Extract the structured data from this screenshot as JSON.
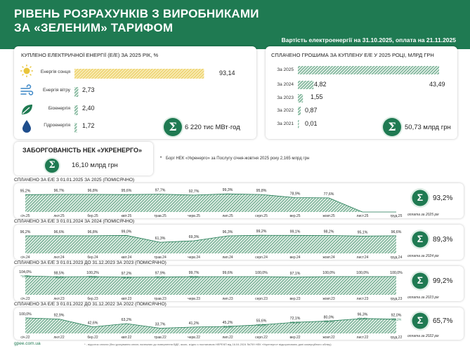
{
  "header": {
    "title_line1": "РІВЕНЬ РОЗРАХУНКІВ З ВИРОБНИКАМИ",
    "title_line2": "ЗА «ЗЕЛЕНИМ» ТАРИФОМ",
    "subtitle": "Вартість електроенергії на 31.10.2025, оплата на 21.11.2025"
  },
  "bought": {
    "title": "КУПЛЕНО ЕЛЕКТРИЧНОЇ ЕНЕРГІЇ (Е/Е) ЗА 2025 РІК, %",
    "total": "6 220 тис МВт·год"
  },
  "paid": {
    "title": "СПЛАЧЕНО ГРОШИМА ЗА КУПЛЕНУ Е/Е У 2025 РОЦІ, МЛРД ГРН",
    "total": "50,73 млрд грн"
  },
  "debt": {
    "title": "ЗАБОРГОВАНІСТЬ НЕК «УКРЕНЕРГО»",
    "value": "16,10 млрд грн",
    "note": "Борг НЕК «Укренерго» за Послугу січня-жовтня 2025 року 2,165 млрд грн"
  },
  "chart_data": [
    {
      "type": "bar",
      "title": "КУПЛЕНО ЕЛЕКТРИЧНОЇ ЕНЕРГІЇ (Е/Е) ЗА 2025 РІК, %",
      "categories": [
        "Енергія сонця",
        "Енергія вітру",
        "Біоенергія",
        "Гідроенергія"
      ],
      "values": [
        93.14,
        2.73,
        2.4,
        1.72
      ],
      "labels": [
        "93,14",
        "2,73",
        "2,40",
        "1,72"
      ],
      "xlim": [
        0,
        100
      ]
    },
    {
      "type": "bar",
      "title": "СПЛАЧЕНО ГРОШИМА ЗА КУПЛЕНУ Е/Е У 2025 РОЦІ, МЛРД ГРН",
      "categories": [
        "За 2025",
        "За 2024",
        "За 2023",
        "За 2022",
        "За 2021"
      ],
      "values": [
        43.49,
        4.82,
        1.55,
        0.87,
        0.01
      ],
      "labels": [
        "43,49",
        "4,82",
        "1,55",
        "0,87",
        "0,01"
      ],
      "xlim": [
        0,
        45
      ]
    },
    {
      "type": "area",
      "title": "СПЛАЧЕНО ЗА Е/Е З 01.01.2025 ЗА 2025 (ПОМІСЯЧНО)",
      "x": [
        "січ.25",
        "лют.25",
        "бер.25",
        "квіт.25",
        "трав.25",
        "черв.25",
        "лип.25",
        "серп.25",
        "вер.25",
        "жовт.25",
        "лист.25",
        "груд.25"
      ],
      "values": [
        95.2,
        96.7,
        96.8,
        95.6,
        97.7,
        92.7,
        99.3,
        95.8,
        78.9,
        77.6,
        0,
        0
      ],
      "labels": [
        "95,2%",
        "96,7%",
        "96,8%",
        "95,6%",
        "97,7%",
        "92,7%",
        "99,3%",
        "95,8%",
        "78,9%",
        "77,6%",
        "",
        ""
      ],
      "sublabels": [
        "",
        "",
        "",
        "",
        "",
        "",
        "",
        "",
        "",
        "",
        "",
        ""
      ],
      "total": "93,2%",
      "note": "оплата за 2025 рік",
      "ylim": [
        0,
        100
      ]
    },
    {
      "type": "area",
      "title": "СПЛАЧЕНО ЗА Е/Е З 01.01.2024 ЗА 2024 (ПОМІСЯЧНО)",
      "x": [
        "січ.24",
        "лют.24",
        "бер.24",
        "квіт.24",
        "трав.24",
        "черв.24",
        "лип.24",
        "серп.24",
        "вер.24",
        "жовт.24",
        "лист.24",
        "груд.24"
      ],
      "values": [
        96.2,
        96.6,
        96.8,
        99.0,
        61.3,
        69.3,
        96.3,
        99.2,
        99.1,
        98.2,
        95.1,
        96.6
      ],
      "labels": [
        "96,2%",
        "96,6%",
        "96,8%",
        "99,0%",
        "61,3%",
        "69,3%",
        "96,3%",
        "99,2%",
        "99,1%",
        "98,2%",
        "95,1%",
        "96,6%"
      ],
      "sublabels": [
        "",
        "",
        "",
        "",
        "",
        "",
        "",
        "",
        "",
        "",
        "",
        ""
      ],
      "total": "89,3%",
      "note": "оплата за 2024 рік",
      "ylim": [
        0,
        100
      ]
    },
    {
      "type": "area",
      "title": "СПЛАЧЕНО ЗА Е/Е З 01.01.2023 ДО 31.12.2023 ЗА 2023 (ПОМІСЯЧНО)",
      "x": [
        "січ.23",
        "лют.23",
        "бер.23",
        "квіт.23",
        "трав.23",
        "черв.23",
        "лип.23",
        "серп.23",
        "вер.23",
        "жовт.23",
        "лист.23",
        "груд.23"
      ],
      "values": [
        104.0,
        98.5,
        100.2,
        97.2,
        97.9,
        99.7,
        99.6,
        100.0,
        97.1,
        100.0,
        100.0,
        100.0
      ],
      "labels": [
        "104,0%",
        "98,5%",
        "100,2%",
        "97,2%",
        "97,9%",
        "99,7%",
        "99,6%",
        "100,0%",
        "97,1%",
        "100,0%",
        "100,0%",
        "100,0%"
      ],
      "sublabels": [
        "*100%",
        "*86,6%",
        "*97,6%",
        "*80,6%",
        "*86,4%",
        "*98,5%",
        "",
        "",
        "",
        "",
        "",
        ""
      ],
      "total": "99,2%",
      "note": "оплата за 2023 рік",
      "ylim": [
        0,
        100
      ]
    },
    {
      "type": "area",
      "title": "СПЛАЧЕНО ЗА Е/Е З 01.01.2022 ДО 31.12.2022 ЗА 2022 (ПОМІСЯЧНО)",
      "x": [
        "січ.22",
        "лют.22",
        "бер.22",
        "квіт.22",
        "трав.22",
        "черв.22",
        "лип.22",
        "серп.22",
        "вер.22",
        "жовт.22",
        "лист.22",
        "груд.22"
      ],
      "values": [
        100.0,
        92.9,
        42.6,
        63.2,
        33.7,
        41.2,
        45.2,
        55.6,
        72.1,
        80.0,
        96.3,
        92.0
      ],
      "labels": [
        "100,0%",
        "92,9%",
        "42,6%",
        "63,2%",
        "33,7%",
        "41,2%",
        "45,2%",
        "55,6%",
        "72,1%",
        "80,0%",
        "96,3%",
        "92,0%"
      ],
      "sublabels": [
        "",
        "",
        "",
        "",
        "",
        "",
        "*34,5%",
        "*46,5%",
        "*70,1%",
        "*80,7%",
        "*91,4%",
        "*98,1%"
      ],
      "total": "65,7%",
      "note": "оплата за 2022 рік",
      "ylim": [
        0,
        100
      ]
    }
  ],
  "footer": {
    "site": "gpee.com.ua",
    "note": "* - відсоток оплати (без урахування оплат, належних до повернення ВДЕ, якою, згідно з постановою НЕРЕКП від 16.04.2024 №759 НЕК «Укренерго» відкориговано дані комерційного обліку)"
  },
  "colors": {
    "accent": "#1f7a52",
    "solar": "#e9c53a",
    "light_green": "#dfeee6"
  }
}
